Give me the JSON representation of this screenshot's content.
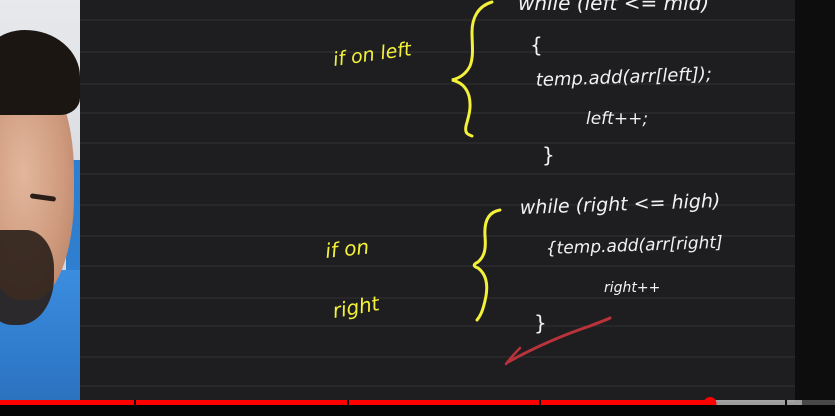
{
  "player": {
    "progress_fraction": 0.85,
    "buffered_fraction": 0.96,
    "chapter_marks_fraction": [
      0.16,
      0.415,
      0.645,
      0.94
    ],
    "accent_color": "#ff0000"
  },
  "board": {
    "notes": {
      "left_label_top": "if on left",
      "left_code": [
        "while (left <= mid)",
        "{",
        "temp.add(arr[left]);",
        "left++;",
        "}"
      ],
      "right_label_1": "if on",
      "right_label_2": "right",
      "right_code": [
        "while (right <= high)",
        "{temp.add(arr[right]",
        "right++",
        "}"
      ]
    },
    "ink_colors": {
      "yellow": "#f3f13a",
      "white": "#f2f2f2",
      "red": "#b8333a"
    }
  }
}
